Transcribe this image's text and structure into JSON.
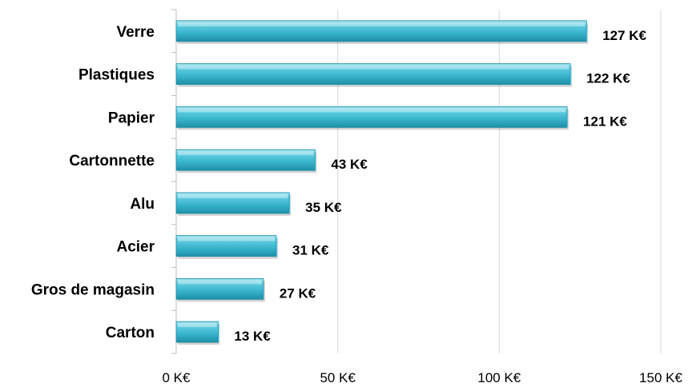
{
  "chart_data": {
    "type": "bar",
    "orientation": "horizontal",
    "categories": [
      "Verre",
      "Plastiques",
      "Papier",
      "Cartonnette",
      "Alu",
      "Acier",
      "Gros de magasin",
      "Carton"
    ],
    "values": [
      127,
      122,
      121,
      43,
      35,
      31,
      27,
      13
    ],
    "data_labels": [
      "127 K€",
      "122 K€",
      "121 K€",
      "43 K€",
      "35 K€",
      "31 K€",
      "27 K€",
      "13 K€"
    ],
    "x_ticks": [
      0,
      50,
      100,
      150
    ],
    "x_tick_labels": [
      "0 K€",
      "50 K€",
      "100 K€",
      "150 K€"
    ],
    "xlim": [
      0,
      150
    ],
    "grid": "vertical",
    "legend": "none",
    "bar_color": "#3cb8cf",
    "title": "",
    "xlabel": "",
    "ylabel": ""
  }
}
